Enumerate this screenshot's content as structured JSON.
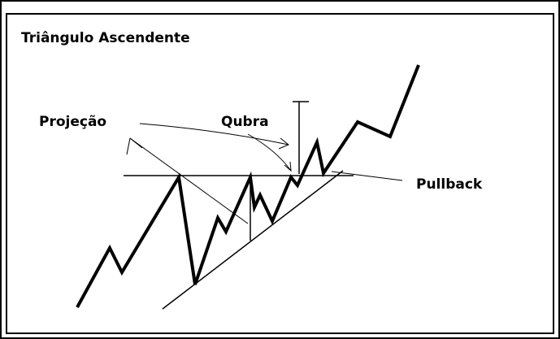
{
  "title": "Triângulo Ascendente",
  "labels": {
    "projection": "Projeção",
    "break": "Qubra",
    "pullback": "Pullback"
  }
}
